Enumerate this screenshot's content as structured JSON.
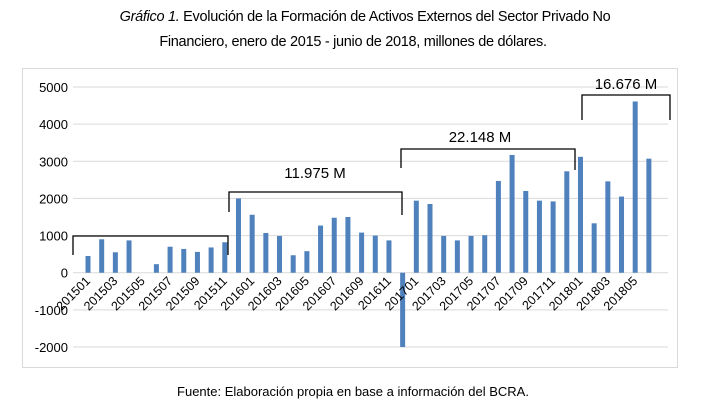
{
  "header": {
    "title_prefix": "Gráfico 1.",
    "title_line1": " Evolución de la Formación de Activos Externos del Sector Privado No",
    "title_line2": "Financiero, enero de 2015 - junio de 2018, millones de dólares."
  },
  "footer": {
    "source": "Fuente: Elaboración propia en base a información del BCRA."
  },
  "chart_data": {
    "type": "bar",
    "title": "",
    "xlabel": "",
    "ylabel": "",
    "ylim": [
      -2000,
      5000
    ],
    "yticks": [
      "5000",
      "4000",
      "3000",
      "2000",
      "1000",
      "0",
      "-1000",
      "-2000"
    ],
    "grid": true,
    "bar_color": "#4f81bd",
    "categories": [
      "201501",
      "201502",
      "201503",
      "201504",
      "201505",
      "201506",
      "201507",
      "201508",
      "201509",
      "201510",
      "201511",
      "201512",
      "201601",
      "201602",
      "201603",
      "201604",
      "201605",
      "201606",
      "201607",
      "201608",
      "201609",
      "201610",
      "201611",
      "201612",
      "201701",
      "201702",
      "201703",
      "201704",
      "201705",
      "201706",
      "201707",
      "201708",
      "201709",
      "201710",
      "201711",
      "201712",
      "201801",
      "201802",
      "201803",
      "201804",
      "201805",
      "201806"
    ],
    "xtick_labels": [
      "201501",
      "201503",
      "201505",
      "201507",
      "201509",
      "201511",
      "201601",
      "201603",
      "201605",
      "201607",
      "201609",
      "201611",
      "201701",
      "201703",
      "201705",
      "201707",
      "201709",
      "201711",
      "201801",
      "201803",
      "201805"
    ],
    "values": [
      450,
      900,
      550,
      870,
      0,
      230,
      700,
      640,
      560,
      680,
      820,
      2000,
      1560,
      1070,
      990,
      470,
      580,
      1270,
      1480,
      1500,
      1080,
      1000,
      870,
      -2000,
      1940,
      1850,
      990,
      870,
      990,
      1010,
      2470,
      3170,
      2200,
      1940,
      1920,
      2730,
      3120,
      1330,
      2460,
      2050,
      4610,
      3070
    ],
    "annotations": [
      {
        "label": "",
        "from": "201501",
        "to": "201511",
        "level": 1000
      },
      {
        "label": "11.975 M",
        "from": "201512",
        "to": "201612",
        "level": 2200
      },
      {
        "label": "22.148 M",
        "from": "201612",
        "to": "201712",
        "level": 3350
      },
      {
        "label": "16.676 M",
        "from": "201801",
        "to": "201806",
        "level": 4800
      }
    ]
  }
}
